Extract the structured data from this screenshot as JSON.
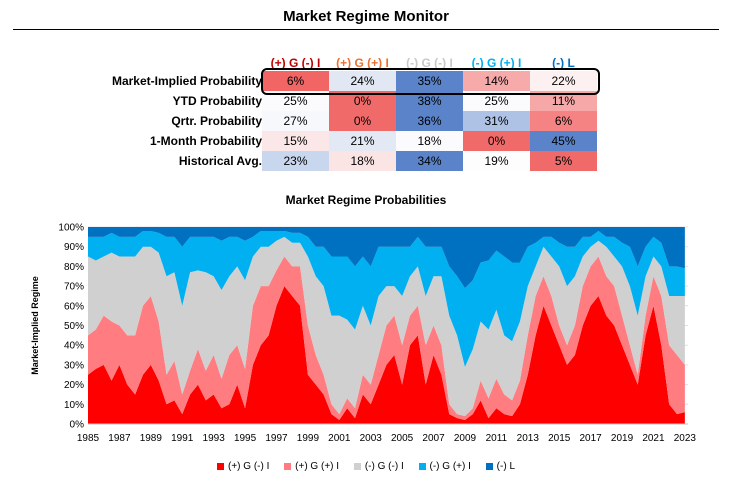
{
  "title": "Market Regime Monitor",
  "table": {
    "columns": [
      {
        "label": "(+) G (-) I",
        "color": "#c00000"
      },
      {
        "label": "(+) G (+) I",
        "color": "#e97132"
      },
      {
        "label": "(-) G (-) I",
        "color": "#c8c8c8"
      },
      {
        "label": "(-) G (+) I",
        "color": "#00b0f0"
      },
      {
        "label": "(-) L",
        "color": "#0070c0"
      }
    ],
    "rows": [
      {
        "label": "Market-Implied Probability",
        "values": [
          "6%",
          "24%",
          "35%",
          "14%",
          "22%"
        ],
        "colors": [
          "#f16565",
          "#e1e7f3",
          "#5b83c9",
          "#f6aaaa",
          "#fdf0f0"
        ]
      },
      {
        "label": "YTD Probability",
        "values": [
          "25%",
          "0%",
          "38%",
          "25%",
          "11%"
        ],
        "colors": [
          "#fbfbfe",
          "#f06a6a",
          "#5b83c9",
          "#fbfbfe",
          "#f6a7a7"
        ]
      },
      {
        "label": "Qrtr. Probability",
        "values": [
          "27%",
          "0%",
          "36%",
          "31%",
          "6%"
        ],
        "colors": [
          "#f7f8fc",
          "#f06a6a",
          "#5b83c9",
          "#aec2e5",
          "#f58383"
        ]
      },
      {
        "label": "1-Month Probability",
        "values": [
          "15%",
          "21%",
          "18%",
          "0%",
          "45%"
        ],
        "colors": [
          "#fbe6e8",
          "#e3e9f4",
          "#fbfbfe",
          "#f06a6a",
          "#5b83c9"
        ]
      },
      {
        "label": "Historical Avg.",
        "values": [
          "23%",
          "18%",
          "34%",
          "19%",
          "5%"
        ],
        "colors": [
          "#c9d7ee",
          "#fbe4e4",
          "#5b83c9",
          "#fdfdfe",
          "#f06a6a"
        ]
      }
    ]
  },
  "chart_data": {
    "type": "area",
    "stacked": true,
    "title": "Market Regime Probabilities",
    "ylabel": "Market-Implied Regime",
    "xlabel": "",
    "ylim": [
      0,
      100
    ],
    "xlim": [
      1985,
      2023.2
    ],
    "x_ticks": [
      "1985",
      "1987",
      "1989",
      "1991",
      "1993",
      "1995",
      "1997",
      "1999",
      "2001",
      "2003",
      "2005",
      "2007",
      "2009",
      "2011",
      "2013",
      "2015",
      "2017",
      "2019",
      "2021",
      "2023"
    ],
    "y_ticks": [
      "0%",
      "10%",
      "20%",
      "30%",
      "40%",
      "50%",
      "60%",
      "70%",
      "80%",
      "90%",
      "100%"
    ],
    "legend_position": "bottom",
    "x": [
      1985,
      1985.5,
      1986,
      1986.5,
      1987,
      1987.5,
      1988,
      1988.5,
      1989,
      1989.5,
      1990,
      1990.5,
      1991,
      1991.5,
      1992,
      1992.5,
      1993,
      1993.5,
      1994,
      1994.5,
      1995,
      1995.5,
      1996,
      1996.5,
      1997,
      1997.5,
      1998,
      1998.5,
      1999,
      1999.5,
      2000,
      2000.5,
      2001,
      2001.5,
      2002,
      2002.5,
      2003,
      2003.5,
      2004,
      2004.5,
      2005,
      2005.5,
      2006,
      2006.5,
      2007,
      2007.5,
      2008,
      2008.5,
      2009,
      2009.5,
      2010,
      2010.5,
      2011,
      2011.5,
      2012,
      2012.5,
      2013,
      2013.5,
      2014,
      2014.5,
      2015,
      2015.5,
      2016,
      2016.5,
      2017,
      2017.5,
      2018,
      2018.5,
      2019,
      2019.5,
      2020,
      2020.5,
      2021,
      2021.5,
      2022,
      2022.5,
      2023
    ],
    "series": [
      {
        "name": "(+) G (-) I",
        "color": "#ff0000",
        "values": [
          25,
          28,
          30,
          22,
          30,
          20,
          15,
          25,
          30,
          22,
          10,
          12,
          5,
          15,
          20,
          12,
          15,
          8,
          10,
          20,
          8,
          30,
          40,
          45,
          60,
          70,
          65,
          60,
          25,
          20,
          15,
          5,
          2,
          8,
          3,
          15,
          10,
          20,
          30,
          35,
          20,
          40,
          45,
          20,
          35,
          25,
          5,
          3,
          2,
          5,
          12,
          3,
          8,
          5,
          4,
          10,
          25,
          45,
          60,
          50,
          40,
          30,
          35,
          50,
          60,
          65,
          55,
          50,
          40,
          30,
          20,
          45,
          60,
          40,
          10,
          5,
          6
        ]
      },
      {
        "name": "(+) G (+) I",
        "color": "#ff7c80",
        "values": [
          20,
          20,
          25,
          30,
          20,
          25,
          30,
          35,
          35,
          30,
          15,
          20,
          10,
          12,
          18,
          15,
          20,
          15,
          25,
          20,
          20,
          30,
          30,
          25,
          18,
          15,
          15,
          20,
          25,
          15,
          10,
          5,
          3,
          5,
          5,
          10,
          10,
          15,
          20,
          20,
          20,
          15,
          15,
          20,
          15,
          15,
          5,
          2,
          2,
          3,
          10,
          10,
          15,
          10,
          8,
          12,
          20,
          20,
          15,
          15,
          10,
          10,
          15,
          20,
          20,
          20,
          20,
          20,
          15,
          10,
          5,
          10,
          15,
          25,
          30,
          30,
          24
        ]
      },
      {
        "name": "(-) G (-) I",
        "color": "#d0d0d0",
        "values": [
          40,
          35,
          30,
          35,
          35,
          40,
          40,
          30,
          25,
          35,
          50,
          45,
          45,
          50,
          40,
          50,
          40,
          45,
          40,
          40,
          45,
          25,
          20,
          20,
          15,
          10,
          12,
          12,
          35,
          40,
          45,
          45,
          50,
          40,
          40,
          35,
          30,
          30,
          20,
          15,
          25,
          20,
          20,
          25,
          25,
          35,
          45,
          40,
          25,
          30,
          30,
          35,
          35,
          30,
          30,
          30,
          25,
          15,
          15,
          20,
          30,
          30,
          25,
          15,
          10,
          8,
          15,
          15,
          25,
          30,
          30,
          20,
          10,
          15,
          25,
          30,
          35
        ]
      },
      {
        "name": "(-) G (+) I",
        "color": "#00b0f0",
        "values": [
          10,
          12,
          10,
          10,
          10,
          10,
          10,
          8,
          8,
          10,
          20,
          18,
          30,
          18,
          17,
          18,
          20,
          25,
          20,
          15,
          20,
          10,
          8,
          8,
          5,
          3,
          5,
          5,
          10,
          15,
          20,
          30,
          30,
          32,
          32,
          25,
          30,
          25,
          20,
          20,
          25,
          15,
          15,
          25,
          15,
          15,
          25,
          30,
          40,
          35,
          30,
          35,
          30,
          40,
          40,
          30,
          20,
          12,
          5,
          10,
          12,
          20,
          15,
          10,
          5,
          5,
          5,
          10,
          12,
          20,
          25,
          15,
          10,
          12,
          15,
          15,
          14
        ]
      }
    ]
  }
}
